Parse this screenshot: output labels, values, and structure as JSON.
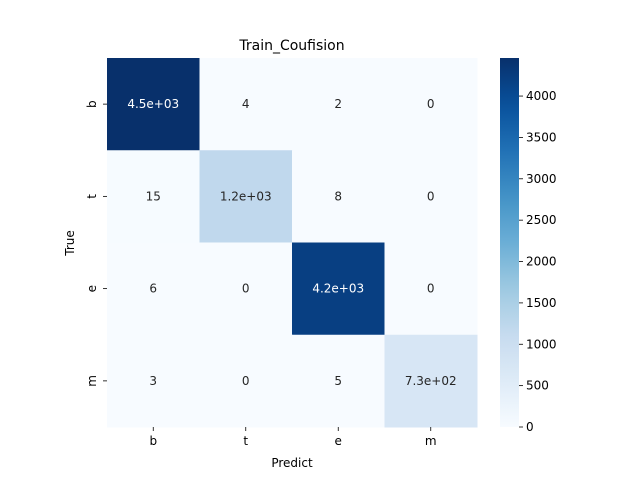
{
  "chart_data": {
    "type": "heatmap",
    "title": "Train_Coufision",
    "xlabel": "Predict",
    "ylabel": "True",
    "x_categories": [
      "b",
      "t",
      "e",
      "m"
    ],
    "y_categories": [
      "b",
      "t",
      "e",
      "m"
    ],
    "values": [
      [
        4460,
        4,
        2,
        0
      ],
      [
        15,
        1200,
        8,
        0
      ],
      [
        6,
        0,
        4200,
        0
      ],
      [
        3,
        0,
        5,
        730
      ]
    ],
    "annotations": [
      [
        "4.5e+03",
        "4",
        "2",
        "0"
      ],
      [
        "15",
        "1.2e+03",
        "8",
        "0"
      ],
      [
        "6",
        "0",
        "4.2e+03",
        "0"
      ],
      [
        "3",
        "0",
        "5",
        "7.3e+02"
      ]
    ],
    "colorbar": {
      "range": [
        0,
        4460
      ],
      "ticks": [
        0,
        500,
        1000,
        1500,
        2000,
        2500,
        3000,
        3500,
        4000
      ],
      "colormap": "Blues",
      "low_color": "#f7fbff",
      "high_color": "#08306b"
    },
    "grid": false
  }
}
